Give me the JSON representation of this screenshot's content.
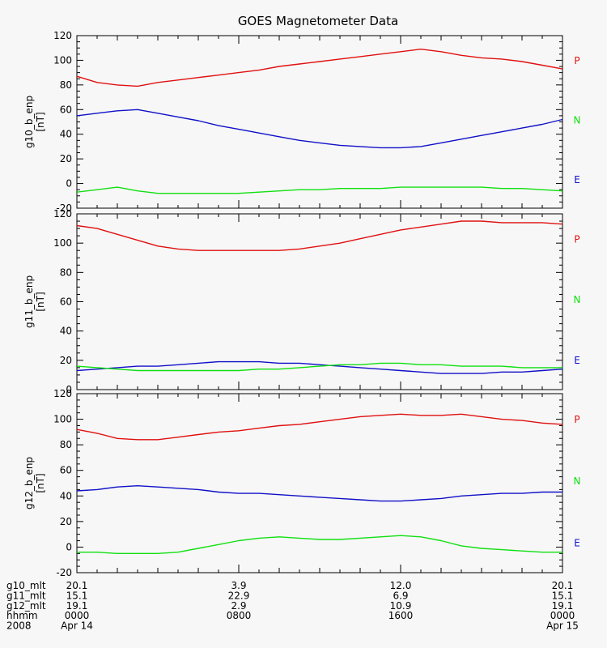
{
  "chart_data": {
    "type": "line",
    "title": "GOES Magnetometer Data",
    "x_start_hours": 0,
    "x_end_hours": 24,
    "panels": [
      {
        "ylabel": "g10_b_enp",
        "yunit": "[nT]",
        "ylim": [
          -20,
          120
        ],
        "yticks": [
          -20,
          0,
          20,
          40,
          60,
          80,
          100,
          120
        ],
        "component_labels": [
          {
            "label": "P",
            "color": "#e01010"
          },
          {
            "label": "N",
            "color": "#10e010"
          },
          {
            "label": "E",
            "color": "#1010c8"
          }
        ],
        "series": [
          {
            "label": "P",
            "color": "#e01010",
            "x": [
              0,
              1,
              2,
              3,
              4,
              5,
              6,
              7,
              8,
              9,
              10,
              11,
              12,
              13,
              14,
              15,
              16,
              17,
              18,
              19,
              20,
              21,
              22,
              23,
              24
            ],
            "values": [
              87,
              82,
              80,
              79,
              82,
              84,
              86,
              88,
              90,
              92,
              95,
              97,
              99,
              101,
              103,
              105,
              107,
              109,
              107,
              104,
              102,
              101,
              99,
              96,
              93
            ]
          },
          {
            "label": "E",
            "color": "#1010c8",
            "x": [
              0,
              1,
              2,
              3,
              4,
              5,
              6,
              7,
              8,
              9,
              10,
              11,
              12,
              13,
              14,
              15,
              16,
              17,
              18,
              19,
              20,
              21,
              22,
              23,
              24
            ],
            "values": [
              55,
              57,
              59,
              60,
              57,
              54,
              51,
              47,
              44,
              41,
              38,
              35,
              33,
              31,
              30,
              29,
              29,
              30,
              33,
              36,
              39,
              42,
              45,
              48,
              52
            ]
          },
          {
            "label": "N",
            "color": "#10e010",
            "x": [
              0,
              1,
              2,
              3,
              4,
              5,
              6,
              7,
              8,
              9,
              10,
              11,
              12,
              13,
              14,
              15,
              16,
              17,
              18,
              19,
              20,
              21,
              22,
              23,
              24
            ],
            "values": [
              -7,
              -5,
              -3,
              -6,
              -8,
              -8,
              -8,
              -8,
              -8,
              -7,
              -6,
              -5,
              -5,
              -4,
              -4,
              -4,
              -3,
              -3,
              -3,
              -3,
              -3,
              -4,
              -4,
              -5,
              -6
            ]
          }
        ]
      },
      {
        "ylabel": "g11_b_enp",
        "yunit": "[nT]",
        "ylim": [
          0,
          120
        ],
        "yticks": [
          0,
          20,
          40,
          60,
          80,
          100,
          120
        ],
        "component_labels": [
          {
            "label": "P",
            "color": "#e01010"
          },
          {
            "label": "N",
            "color": "#10e010"
          },
          {
            "label": "E",
            "color": "#1010c8"
          }
        ],
        "series": [
          {
            "label": "P",
            "color": "#e01010",
            "x": [
              0,
              1,
              2,
              3,
              4,
              5,
              6,
              7,
              8,
              9,
              10,
              11,
              12,
              13,
              14,
              15,
              16,
              17,
              18,
              19,
              20,
              21,
              22,
              23,
              24
            ],
            "values": [
              112,
              110,
              106,
              102,
              98,
              96,
              95,
              95,
              95,
              95,
              95,
              96,
              98,
              100,
              103,
              106,
              109,
              111,
              113,
              115,
              115,
              114,
              114,
              114,
              113
            ]
          },
          {
            "label": "E",
            "color": "#1010c8",
            "x": [
              0,
              1,
              2,
              3,
              4,
              5,
              6,
              7,
              8,
              9,
              10,
              11,
              12,
              13,
              14,
              15,
              16,
              17,
              18,
              19,
              20,
              21,
              22,
              23,
              24
            ],
            "values": [
              13,
              14,
              15,
              16,
              16,
              17,
              18,
              19,
              19,
              19,
              18,
              18,
              17,
              16,
              15,
              14,
              13,
              12,
              11,
              11,
              11,
              12,
              12,
              13,
              14
            ]
          },
          {
            "label": "N",
            "color": "#10e010",
            "x": [
              0,
              1,
              2,
              3,
              4,
              5,
              6,
              7,
              8,
              9,
              10,
              11,
              12,
              13,
              14,
              15,
              16,
              17,
              18,
              19,
              20,
              21,
              22,
              23,
              24
            ],
            "values": [
              16,
              15,
              14,
              13,
              13,
              13,
              13,
              13,
              13,
              14,
              14,
              15,
              16,
              17,
              17,
              18,
              18,
              17,
              17,
              16,
              16,
              16,
              15,
              15,
              15
            ]
          }
        ]
      },
      {
        "ylabel": "g12_b_enp",
        "yunit": "[nT]",
        "ylim": [
          -20,
          120
        ],
        "yticks": [
          -20,
          0,
          20,
          40,
          60,
          80,
          100,
          120
        ],
        "component_labels": [
          {
            "label": "P",
            "color": "#e01010"
          },
          {
            "label": "N",
            "color": "#10e010"
          },
          {
            "label": "E",
            "color": "#1010c8"
          }
        ],
        "series": [
          {
            "label": "P",
            "color": "#e01010",
            "x": [
              0,
              1,
              2,
              3,
              4,
              5,
              6,
              7,
              8,
              9,
              10,
              11,
              12,
              13,
              14,
              15,
              16,
              17,
              18,
              19,
              20,
              21,
              22,
              23,
              24
            ],
            "values": [
              92,
              89,
              85,
              84,
              84,
              86,
              88,
              90,
              91,
              93,
              95,
              96,
              98,
              100,
              102,
              103,
              104,
              103,
              103,
              104,
              102,
              100,
              99,
              97,
              96
            ]
          },
          {
            "label": "E",
            "color": "#1010c8",
            "x": [
              0,
              1,
              2,
              3,
              4,
              5,
              6,
              7,
              8,
              9,
              10,
              11,
              12,
              13,
              14,
              15,
              16,
              17,
              18,
              19,
              20,
              21,
              22,
              23,
              24
            ],
            "values": [
              44,
              45,
              47,
              48,
              47,
              46,
              45,
              43,
              42,
              42,
              41,
              40,
              39,
              38,
              37,
              36,
              36,
              37,
              38,
              40,
              41,
              42,
              42,
              43,
              43
            ]
          },
          {
            "label": "N",
            "color": "#10e010",
            "x": [
              0,
              1,
              2,
              3,
              4,
              5,
              6,
              7,
              8,
              9,
              10,
              11,
              12,
              13,
              14,
              15,
              16,
              17,
              18,
              19,
              20,
              21,
              22,
              23,
              24
            ],
            "values": [
              -4,
              -4,
              -5,
              -5,
              -5,
              -4,
              -1,
              2,
              5,
              7,
              8,
              7,
              6,
              6,
              7,
              8,
              9,
              8,
              5,
              1,
              -1,
              -2,
              -3,
              -4,
              -4
            ]
          }
        ]
      }
    ],
    "xaxis_rows": [
      {
        "label": "g10_mlt",
        "values": [
          "20.1",
          "3.9",
          "12.0",
          "20.1"
        ]
      },
      {
        "label": "g11_mlt",
        "values": [
          "15.1",
          "22.9",
          "6.9",
          "15.1"
        ]
      },
      {
        "label": "g12_mlt",
        "values": [
          "19.1",
          "2.9",
          "10.9",
          "19.1"
        ]
      },
      {
        "label": "hhmm",
        "values": [
          "0000",
          "0800",
          "1600",
          "0000"
        ]
      },
      {
        "label": "2008",
        "values": [
          "Apr 14",
          "",
          "",
          "Apr 15"
        ]
      }
    ],
    "xtick_hours": [
      0,
      8,
      16,
      24
    ],
    "grid": false,
    "legend": "right"
  }
}
